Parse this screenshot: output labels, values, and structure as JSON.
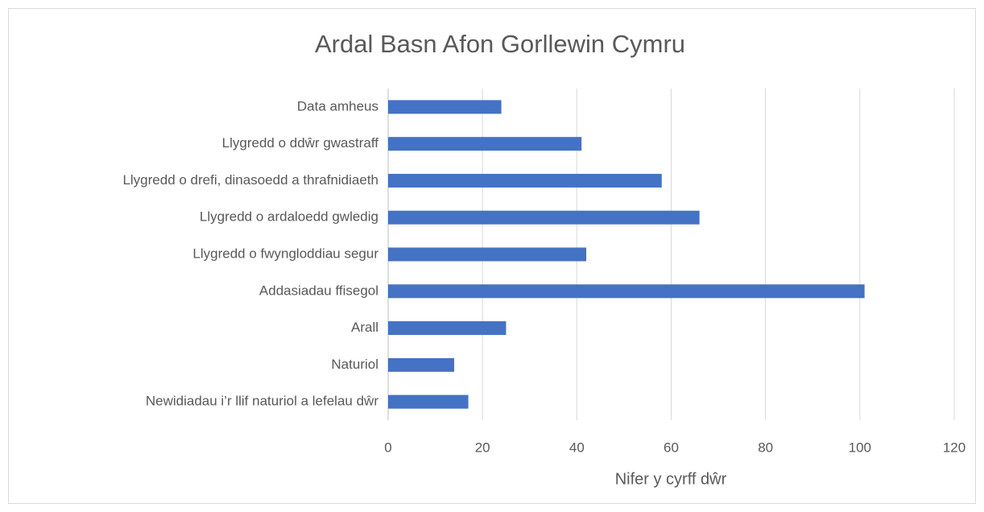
{
  "chart_data": {
    "type": "bar",
    "orientation": "horizontal",
    "title": "Ardal Basn Afon Gorllewin Cymru",
    "x_label": "Nifer y cyrff dŵr",
    "categories": [
      "Data amheus",
      "Llygredd o ddŵr gwastraff",
      "Llygredd o drefi, dinasoedd a thrafnidiaeth",
      "Llygredd o ardaloedd gwledig",
      "Llygredd o fwyngloddiau segur",
      "Addasiadau ffisegol",
      "Arall",
      "Naturiol",
      "Newidiadau i’r llif naturiol a lefelau dŵr"
    ],
    "values": [
      24,
      41,
      58,
      66,
      42,
      101,
      25,
      14,
      17
    ],
    "color": "#4472c4",
    "xlim": [
      0,
      120
    ],
    "xticks": [
      0,
      20,
      40,
      60,
      80,
      100,
      120
    ],
    "grid": true
  }
}
